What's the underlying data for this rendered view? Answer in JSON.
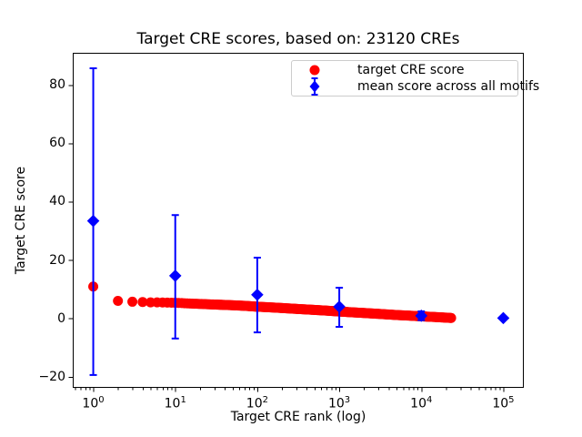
{
  "chart_data": {
    "type": "scatter",
    "title": "Target CRE scores, based on: 23120 CREs",
    "xlabel": "Target CRE rank (log)",
    "ylabel": "Target CRE score",
    "x_scale": "log",
    "grid": false,
    "legend_position": "upper right",
    "xlim_log10": [
      -0.25,
      5.25
    ],
    "ylim": [
      -23.8,
      91.0
    ],
    "x_tick_exponents": [
      0,
      1,
      2,
      3,
      4,
      5
    ],
    "y_ticks": [
      -20,
      0,
      20,
      40,
      60,
      80
    ],
    "y_tick_labels": [
      "−20",
      "0",
      "20",
      "40",
      "60",
      "80"
    ],
    "colors": {
      "target_series": "#ff0000",
      "mean_series": "#0000ff",
      "axis": "#000000",
      "legend_border": "#cccccc"
    },
    "series": [
      {
        "name": "target CRE score",
        "kind": "scatter",
        "marker": "circle",
        "color": "#ff0000",
        "total_points": 23120,
        "sampled_points": [
          [
            1,
            10.9
          ],
          [
            2,
            6.0
          ],
          [
            3,
            5.7
          ],
          [
            4,
            5.6
          ],
          [
            5,
            5.5
          ],
          [
            6,
            5.5
          ],
          [
            8,
            5.4
          ],
          [
            10,
            5.35
          ],
          [
            15,
            5.1
          ],
          [
            20,
            4.95
          ],
          [
            30,
            4.75
          ],
          [
            50,
            4.5
          ],
          [
            70,
            4.3
          ],
          [
            100,
            4.0
          ],
          [
            150,
            3.75
          ],
          [
            200,
            3.55
          ],
          [
            300,
            3.25
          ],
          [
            500,
            2.9
          ],
          [
            700,
            2.65
          ],
          [
            1000,
            2.35
          ],
          [
            1500,
            2.05
          ],
          [
            2000,
            1.85
          ],
          [
            3000,
            1.55
          ],
          [
            5000,
            1.15
          ],
          [
            7000,
            0.95
          ],
          [
            10000,
            0.7
          ],
          [
            15000,
            0.45
          ],
          [
            20000,
            0.25
          ],
          [
            23120,
            0.15
          ]
        ]
      },
      {
        "name": "mean score across all motifs",
        "kind": "errorbar",
        "marker": "diamond",
        "color": "#0000ff",
        "x": [
          1,
          10,
          100,
          1000,
          10000,
          100000
        ],
        "y": [
          33.4,
          14.6,
          8.1,
          4.0,
          0.9,
          0.1
        ],
        "err_minus": [
          52.8,
          21.5,
          12.9,
          6.9,
          1.5,
          0.3
        ],
        "err_plus": [
          52.3,
          20.8,
          12.7,
          6.5,
          1.5,
          0.3
        ]
      }
    ]
  }
}
